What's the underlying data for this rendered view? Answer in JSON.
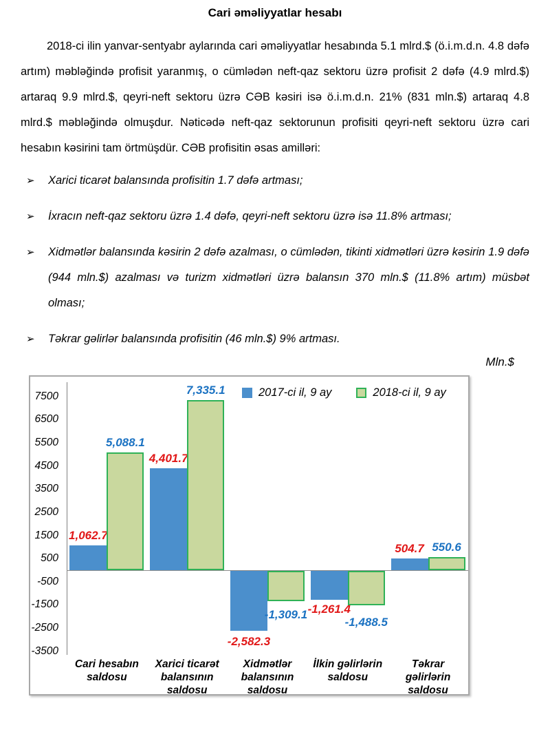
{
  "document": {
    "title": "Cari əməliyyatlar hesabı",
    "paragraph": "2018-ci ilin yanvar-sentyabr aylarında cari əməliyyatlar hesabında 5.1 mlrd.$ (ö.i.m.d.n. 4.8 dəfə artım) məbləğində profisit yaranmış, o cümlədən neft-qaz sektoru üzrə profisit 2 dəfə (4.9 mlrd.$) artaraq 9.9 mlrd.$, qeyri-neft sektoru üzrə CƏB kəsiri isə ö.i.m.d.n. 21% (831 mln.$) artaraq 4.8 mlrd.$ məbləğində olmuşdur. Nəticədə neft-qaz sektorunun profisiti qeyri-neft sektoru üzrə cari hesabın kəsirini tam örtmüşdür. CƏB profisitin əsas amilləri:",
    "bullet_glyph": "➢",
    "bullets": [
      "Xarici ticarət balansında profisitin 1.7 dəfə artması;",
      "İxracın neft-qaz sektoru üzrə 1.4 dəfə, qeyri-neft sektoru üzrə isə 11.8% artması;",
      "Xidmətlər balansında kəsirin 2 dəfə azalması, o cümlədən, tikinti xidmətləri üzrə kəsirin 1.9 dəfə (944 mln.$) azalması və turizm xidmətləri üzrə balansın 370 mln.$ (11.8% artım) müsbət olması;",
      "Təkrar gəlirlər balansında profisitin (46 mln.$) 9% artması."
    ],
    "units_label": "Mln.$"
  },
  "chart_data": {
    "type": "bar",
    "title": "",
    "unit_label": "Mln.$",
    "categories": [
      "Cari hesabın saldosu",
      "Xarici ticarət balansının saldosu",
      "Xidmətlər balansının saldosu",
      "İlkin gəlirlərin saldosu",
      "Təkrar gəlirlərin saldosu"
    ],
    "series": [
      {
        "name": "2017-ci il, 9 ay",
        "color": "#4b8fcc",
        "label_color": "#e11717",
        "values": [
          1062.7,
          4401.7,
          -2582.3,
          -1261.4,
          504.7
        ],
        "labels": [
          "1,062.7",
          "4,401.7",
          "-2,582.3",
          "-1,261.4",
          "504.7"
        ]
      },
      {
        "name": "2018-ci il, 9 ay",
        "color": "#c9d89e",
        "border_color": "#2fb257",
        "label_color": "#1b72c2",
        "values": [
          5088.1,
          7335.1,
          -1309.1,
          -1488.5,
          550.6
        ],
        "labels": [
          "5,088.1",
          "7,335.1",
          "-1,309.1",
          "-1,488.5",
          "550.6"
        ]
      }
    ],
    "y_ticks": [
      7500,
      6500,
      5500,
      4500,
      3500,
      2500,
      1500,
      500,
      -500,
      -1500,
      -2500,
      -3500
    ],
    "ylim": [
      -3600,
      8000
    ],
    "grid": false,
    "legend_position": "top-inside"
  }
}
